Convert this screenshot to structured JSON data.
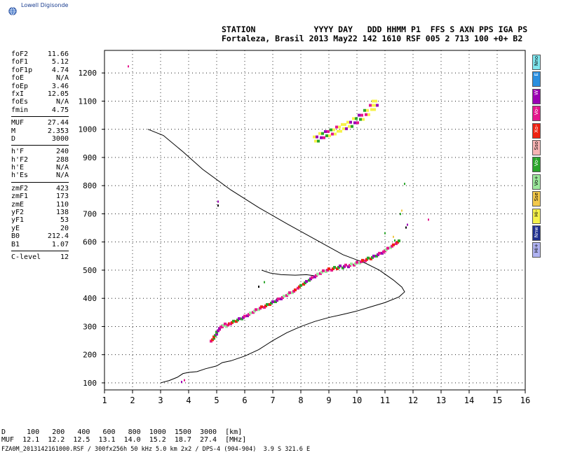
{
  "app": {
    "logo_text": "Lowell Digisonde"
  },
  "header": {
    "line1": "STATION            YYYY DAY   DDD HHMM P1  FFS S AXN PPS IGA PS",
    "line2": "Fortaleza, Brasil 2013 May22 142 1610 RSF 005 2 713 100 +0+ B2"
  },
  "params_group1": [
    {
      "label": "foF2",
      "value": "11.66"
    },
    {
      "label": "foF1",
      "value": "5.12"
    },
    {
      "label": "foF1p",
      "value": "4.74"
    },
    {
      "label": "foE",
      "value": "N/A"
    },
    {
      "label": "foEp",
      "value": "3.46"
    },
    {
      "label": "fxI",
      "value": "12.05"
    },
    {
      "label": "foEs",
      "value": "N/A"
    },
    {
      "label": "fmin",
      "value": "4.75"
    }
  ],
  "params_group2": [
    {
      "label": "MUF",
      "value": "27.44"
    },
    {
      "label": "M",
      "value": "2.353"
    },
    {
      "label": "D",
      "value": "3000"
    }
  ],
  "params_group3": [
    {
      "label": "h'F",
      "value": "240"
    },
    {
      "label": "h'F2",
      "value": "288"
    },
    {
      "label": "h'E",
      "value": "N/A"
    },
    {
      "label": "h'Es",
      "value": "N/A"
    }
  ],
  "params_group4": [
    {
      "label": "zmF2",
      "value": "423"
    },
    {
      "label": "zmF1",
      "value": "173"
    },
    {
      "label": "zmE",
      "value": "110"
    },
    {
      "label": "yF2",
      "value": "138"
    },
    {
      "label": "yF1",
      "value": "53"
    },
    {
      "label": "yE",
      "value": "20"
    },
    {
      "label": "B0",
      "value": "212.4"
    },
    {
      "label": "B1",
      "value": "1.07"
    }
  ],
  "params_group5": [
    {
      "label": "C-level",
      "value": "12"
    }
  ],
  "bottom": {
    "row1": "D     100   200   400   600   800  1000  1500  3000  [km]",
    "row2": "MUF  12.1  12.2  12.5  13.1  14.0  15.2  18.7  27.4  [MHz]",
    "footer": "FZA0M_2013142161000.RSF / 300fx256h 50 kHz 5.0 km 2x2 / DPS-4 (904-904)  3.9 S 321.6 E"
  },
  "legend": [
    {
      "label": "Nno",
      "color": "#7fe7ef"
    },
    {
      "label": "E",
      "color": "#2a8fe0"
    },
    {
      "label": "W",
      "color": "#9b00b4"
    },
    {
      "label": "Vo-",
      "color": "#e5178d"
    },
    {
      "label": "Xo-",
      "color": "#ee2211"
    },
    {
      "label": "Sso",
      "color": "#f7b4b4"
    },
    {
      "label": "Vo-",
      "color": "#2aa52a"
    },
    {
      "label": "Vo+",
      "color": "#9ce89c"
    },
    {
      "label": "Sse",
      "color": "#f2c84b"
    },
    {
      "label": "Hi-",
      "color": "#f6f24a"
    },
    {
      "label": "Nnw",
      "color": "#21318f"
    },
    {
      "label": "Hi+",
      "color": "#b0b3f2"
    }
  ],
  "chart_data": {
    "type": "scatter",
    "title": "",
    "xlabel": "",
    "ylabel": "",
    "xlim": [
      1,
      16
    ],
    "ylim": [
      75,
      1280
    ],
    "xticks": [
      1,
      2,
      3,
      4,
      5,
      6,
      7,
      8,
      9,
      10,
      11,
      12,
      13,
      14,
      15,
      16
    ],
    "yticks": [
      100,
      200,
      300,
      400,
      500,
      600,
      700,
      800,
      900,
      1000,
      1100,
      1200
    ],
    "grid": true,
    "legend_position": "right",
    "profile_line": {
      "name": "",
      "points": [
        [
          3.0,
          100
        ],
        [
          3.3,
          108
        ],
        [
          3.6,
          120
        ],
        [
          3.8,
          133
        ],
        [
          4.0,
          137
        ],
        [
          4.3,
          140
        ],
        [
          4.6,
          150
        ],
        [
          5.0,
          160
        ],
        [
          5.2,
          172
        ],
        [
          5.5,
          178
        ],
        [
          6.0,
          195
        ],
        [
          6.5,
          218
        ],
        [
          7.0,
          250
        ],
        [
          7.5,
          278
        ],
        [
          8.0,
          300
        ],
        [
          8.5,
          318
        ],
        [
          9.0,
          332
        ],
        [
          9.5,
          343
        ],
        [
          10.0,
          355
        ],
        [
          10.5,
          370
        ],
        [
          11.0,
          385
        ],
        [
          11.5,
          405
        ],
        [
          11.7,
          423
        ],
        [
          11.6,
          440
        ],
        [
          11.3,
          465
        ],
        [
          10.8,
          500
        ],
        [
          10.3,
          525
        ],
        [
          9.5,
          555
        ],
        [
          8.5,
          610
        ],
        [
          7.5,
          665
        ],
        [
          6.5,
          722
        ],
        [
          5.5,
          785
        ],
        [
          4.5,
          858
        ],
        [
          3.8,
          920
        ],
        [
          3.1,
          978
        ],
        [
          2.55,
          1000
        ]
      ]
    },
    "trace_f2": [
      [
        4.8,
        248
      ],
      [
        4.9,
        263
      ],
      [
        5.0,
        280
      ],
      [
        5.1,
        293
      ],
      [
        5.2,
        299
      ],
      [
        5.35,
        300
      ],
      [
        5.5,
        309
      ],
      [
        5.7,
        318
      ],
      [
        5.9,
        327
      ],
      [
        6.1,
        338
      ],
      [
        6.3,
        350
      ],
      [
        6.5,
        360
      ],
      [
        6.7,
        368
      ],
      [
        6.9,
        378
      ],
      [
        7.1,
        388
      ],
      [
        7.3,
        398
      ],
      [
        7.5,
        410
      ],
      [
        7.7,
        420
      ],
      [
        7.9,
        436
      ],
      [
        8.1,
        450
      ],
      [
        8.3,
        464
      ],
      [
        8.5,
        476
      ],
      [
        8.7,
        488
      ],
      [
        8.9,
        495
      ],
      [
        9.1,
        500
      ],
      [
        9.3,
        505
      ],
      [
        9.5,
        508
      ],
      [
        9.7,
        512
      ],
      [
        9.9,
        518
      ],
      [
        10.1,
        525
      ],
      [
        10.3,
        533
      ],
      [
        10.5,
        540
      ],
      [
        10.7,
        550
      ],
      [
        10.9,
        560
      ],
      [
        11.0,
        568
      ],
      [
        11.2,
        580
      ],
      [
        11.4,
        594
      ]
    ],
    "trace_es": [
      [
        8.5,
        968
      ],
      [
        8.7,
        980
      ],
      [
        8.9,
        987
      ],
      [
        9.1,
        993
      ],
      [
        9.3,
        1003
      ],
      [
        9.5,
        1012
      ],
      [
        9.7,
        1020
      ],
      [
        9.9,
        1033
      ],
      [
        10.1,
        1045
      ],
      [
        10.3,
        1062
      ],
      [
        10.5,
        1080
      ],
      [
        10.6,
        1095
      ]
    ],
    "x_trace": [
      [
        6.6,
        500
      ],
      [
        6.9,
        490
      ],
      [
        7.3,
        484
      ],
      [
        7.8,
        482
      ],
      [
        8.2,
        484
      ],
      [
        8.5,
        480
      ]
    ],
    "sparse_points": [
      [
        1.85,
        1222
      ],
      [
        5.05,
        742
      ],
      [
        5.05,
        728
      ],
      [
        11.7,
        805
      ],
      [
        11.6,
        710
      ],
      [
        11.55,
        698
      ],
      [
        12.55,
        678
      ],
      [
        11.8,
        660
      ],
      [
        11.75,
        650
      ],
      [
        11.0,
        630
      ],
      [
        11.3,
        617
      ],
      [
        11.35,
        604
      ],
      [
        3.85,
        108
      ],
      [
        3.75,
        102
      ],
      [
        6.5,
        440
      ],
      [
        6.7,
        456
      ]
    ]
  }
}
